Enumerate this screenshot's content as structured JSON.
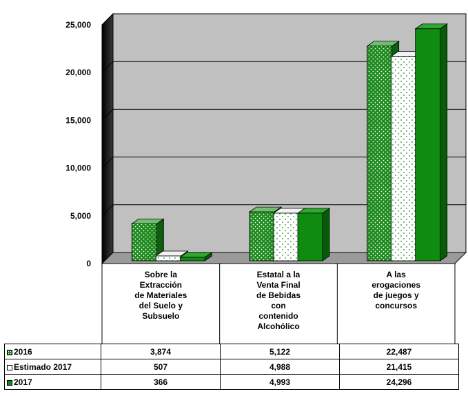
{
  "chart_data": {
    "type": "bar",
    "categories": [
      "Sobre la Extracción de Materiales del Suelo y Subsuelo",
      "Estatal a la Venta Final de Bebidas con contenido Alcohólico",
      "A las erogaciones de juegos y concursos"
    ],
    "category_lines": [
      [
        "Sobre la",
        "Extracción",
        "de Materiales",
        "del Suelo y",
        "Subsuelo"
      ],
      [
        "Estatal a la",
        "Venta Final",
        "de Bebidas",
        "con",
        "contenido",
        "Alcohólico"
      ],
      [
        "A las",
        "erogaciones",
        "de juegos y",
        "concursos"
      ]
    ],
    "series": [
      {
        "name": "2016",
        "values": [
          3874,
          5122,
          22487
        ],
        "color": "#1e8a1e",
        "pattern": "dotted-green"
      },
      {
        "name": "Estimado 2017",
        "values": [
          507,
          4988,
          21415
        ],
        "color": "#ffffff",
        "pattern": "dotted-white"
      },
      {
        "name": "2017",
        "values": [
          366,
          4993,
          24296
        ],
        "color": "#0e8a0e",
        "pattern": "solid"
      }
    ],
    "table_values": [
      [
        "3,874",
        "5,122",
        "22,487"
      ],
      [
        "507",
        "4,988",
        "21,415"
      ],
      [
        "366",
        "4,993",
        "24,296"
      ]
    ],
    "yticks": [
      "0",
      "5,000",
      "10,000",
      "15,000",
      "20,000",
      "25,000"
    ],
    "ylim": [
      0,
      25000
    ],
    "grid": true,
    "legend": "data-table-below",
    "wall_color": "#c0c0c0",
    "side_wall_color": "#1a1a1a"
  }
}
